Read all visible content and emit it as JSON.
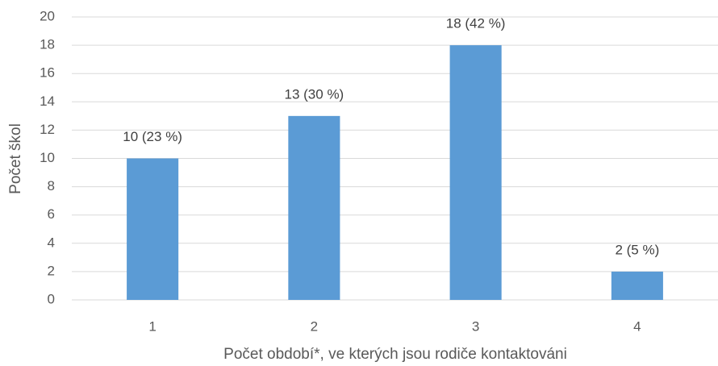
{
  "chart_data": {
    "type": "bar",
    "categories": [
      "1",
      "2",
      "3",
      "4"
    ],
    "values": [
      10,
      13,
      18,
      2
    ],
    "value_labels": [
      "10 (23 %)",
      "13 (30 %)",
      "18 (42 %)",
      "2 (5 %)"
    ],
    "color": "#5b9bd5",
    "xlabel": "Počet období*, ve kterých jsou rodiče kontaktováni",
    "ylabel": "Počet škol",
    "ylim": [
      0,
      20
    ],
    "yticks": [
      0,
      2,
      4,
      6,
      8,
      10,
      12,
      14,
      16,
      18,
      20
    ],
    "grid": true
  }
}
